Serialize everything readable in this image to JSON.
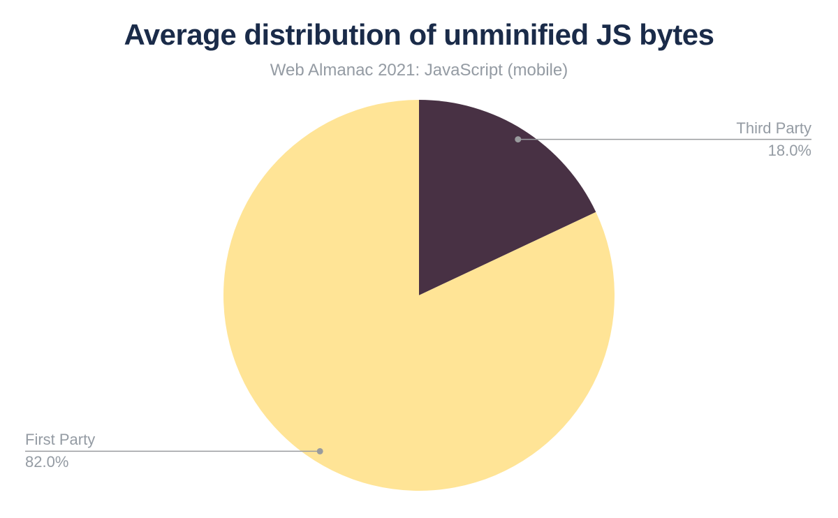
{
  "chart_data": {
    "type": "pie",
    "title": "Average distribution of unminified JS bytes",
    "subtitle": "Web Almanac 2021: JavaScript (mobile)",
    "unit": "percent",
    "slices": [
      {
        "label": "Third Party",
        "value": 18.0,
        "display_value": "18.0%",
        "color": "#483144",
        "label_side": "right"
      },
      {
        "label": "First Party",
        "value": 82.0,
        "display_value": "82.0%",
        "color": "#ffe496",
        "label_side": "left"
      }
    ],
    "start_angle_deg": -90,
    "direction": "clockwise",
    "legend_position": "callout-labels",
    "colors": {
      "title_text": "#1a2b49",
      "subtitle_text": "#949ba3",
      "label_text": "#949ba3",
      "leader_line": "#999b9e",
      "background": "#ffffff"
    }
  }
}
